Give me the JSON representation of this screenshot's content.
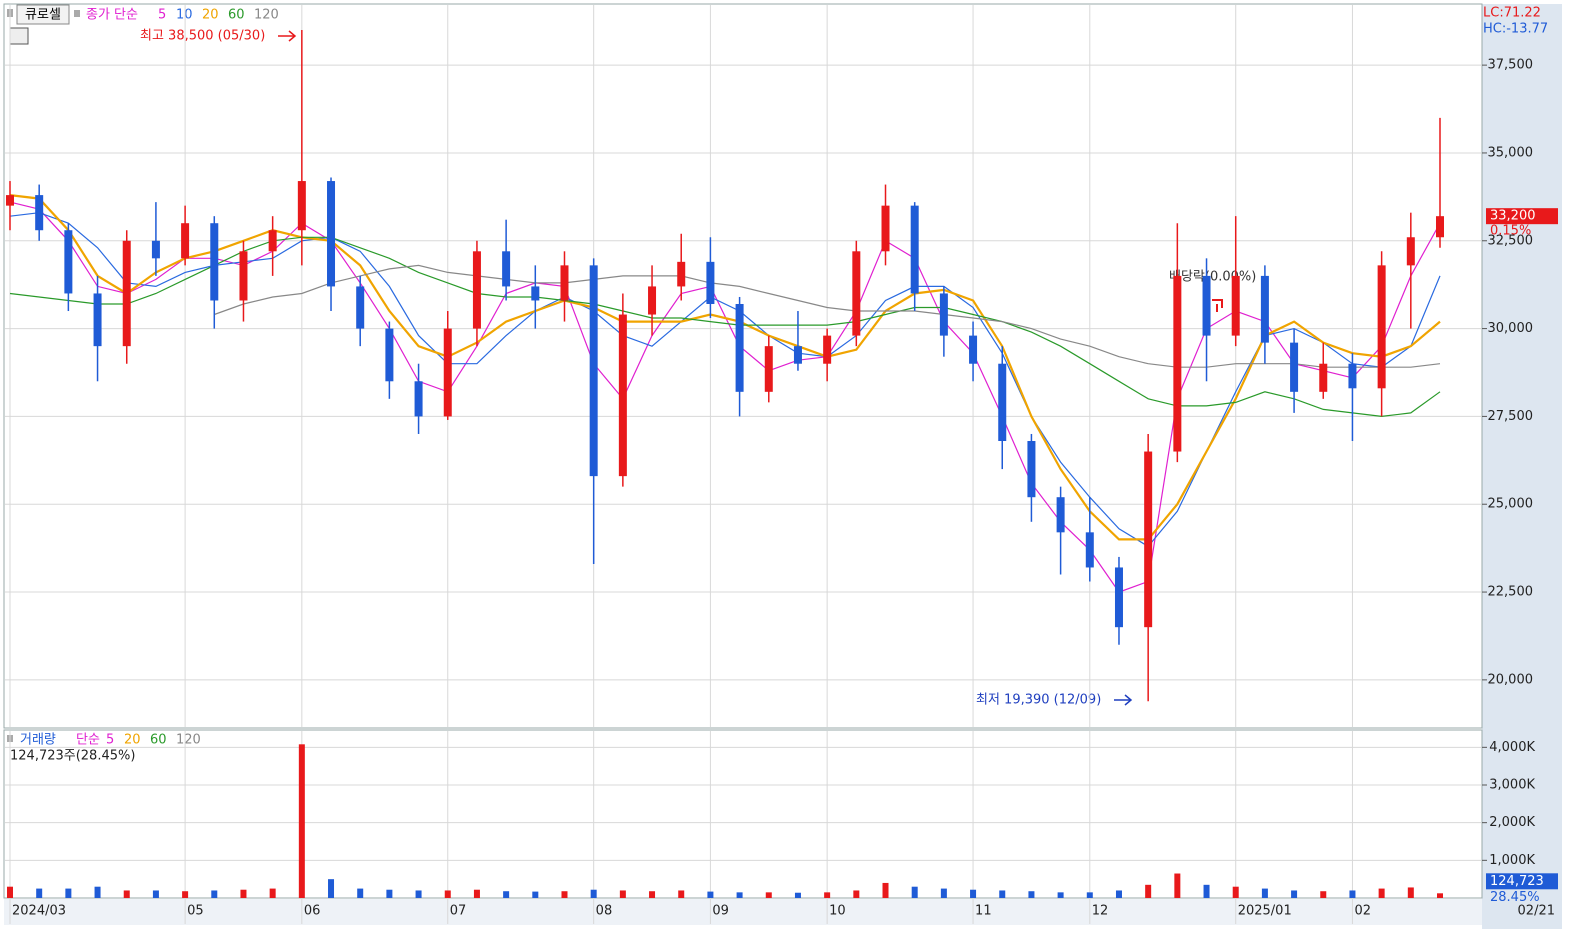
{
  "chart_data": [
    {
      "type": "candlestick",
      "title": "큐로셀",
      "legend_label": "종가 단순",
      "categories": [
        "2024/03",
        null,
        null,
        null,
        null,
        null,
        "05",
        null,
        null,
        null,
        "06",
        null,
        null,
        null,
        null,
        "07",
        null,
        null,
        null,
        null,
        "08",
        null,
        null,
        null,
        "09",
        null,
        null,
        null,
        "10",
        null,
        null,
        null,
        null,
        "11",
        null,
        null,
        null,
        "12",
        null,
        null,
        null,
        null,
        "2025/01",
        null,
        null,
        null,
        "02",
        null,
        null,
        null
      ],
      "last_date": "02/21",
      "open": [
        33500,
        33800,
        32800,
        31000,
        29500,
        32500,
        32000,
        33000,
        30800,
        32200,
        32800,
        34200,
        31200,
        30000,
        28500,
        27500,
        30000,
        32200,
        31200,
        30800,
        31800,
        25800,
        30400,
        31200,
        31900,
        30700,
        28200,
        29500,
        29000,
        29800,
        32200,
        33500,
        31000,
        29800,
        29000,
        26800,
        25200,
        24200,
        23200,
        21500,
        26500,
        31500,
        29800,
        31500,
        29600,
        28200,
        29000,
        28300,
        31800,
        32600
      ],
      "high": [
        34200,
        34100,
        33000,
        31500,
        32800,
        33600,
        33500,
        33200,
        32500,
        33200,
        38500,
        34300,
        31500,
        30200,
        29000,
        30500,
        32500,
        33100,
        31800,
        32200,
        32000,
        31000,
        31800,
        32700,
        32600,
        30900,
        29800,
        30500,
        30000,
        32500,
        34100,
        33600,
        31200,
        30200,
        29500,
        27000,
        25500,
        25200,
        23500,
        27000,
        33000,
        32000,
        33200,
        31800,
        30000,
        29600,
        29300,
        32200,
        33300,
        36000
      ],
      "low": [
        32800,
        32500,
        30500,
        28500,
        29000,
        31500,
        31800,
        30000,
        30200,
        31500,
        31800,
        30500,
        29500,
        28000,
        27000,
        27400,
        29500,
        30800,
        30000,
        30200,
        23300,
        25500,
        29800,
        30800,
        30300,
        27500,
        27900,
        28800,
        28500,
        29500,
        31800,
        30500,
        29200,
        28500,
        26000,
        24500,
        23000,
        22800,
        21000,
        19390,
        26200,
        28500,
        29500,
        29000,
        27600,
        28000,
        26800,
        27500,
        30000,
        32300
      ],
      "close": [
        33800,
        32800,
        31000,
        29500,
        32500,
        32000,
        33000,
        30800,
        32200,
        32800,
        34200,
        31200,
        30000,
        28500,
        27500,
        30000,
        32200,
        31200,
        30800,
        31800,
        25800,
        30400,
        31200,
        31900,
        30700,
        28200,
        29500,
        29000,
        29800,
        32200,
        33500,
        31000,
        29800,
        29000,
        26800,
        25200,
        24200,
        23200,
        21500,
        26500,
        31500,
        29800,
        31500,
        29600,
        28200,
        29000,
        28300,
        31800,
        32600,
        33200
      ],
      "up_color": "#e8191b",
      "down_color": "#1f5bd6",
      "series": [
        {
          "name": "5",
          "color": "#e020d0",
          "values": [
            33600,
            33400,
            32500,
            31200,
            31000,
            31400,
            32000,
            32000,
            31800,
            32200,
            33000,
            32500,
            31300,
            30000,
            28500,
            28200,
            29500,
            31000,
            31300,
            31200,
            29000,
            28000,
            29800,
            31000,
            31200,
            29500,
            28800,
            29100,
            29200,
            30500,
            32500,
            32000,
            30200,
            29300,
            27500,
            25600,
            24500,
            23700,
            22500,
            22800,
            28000,
            30000,
            30500,
            30200,
            29000,
            28800,
            28600,
            29500,
            31500,
            33000
          ]
        },
        {
          "name": "10",
          "color": "#2a6ae0",
          "values": [
            33200,
            33300,
            33000,
            32300,
            31300,
            31200,
            31600,
            31800,
            31900,
            32000,
            32500,
            32600,
            32200,
            31200,
            29800,
            29000,
            29000,
            29800,
            30500,
            30900,
            30500,
            29800,
            29500,
            30200,
            30900,
            30500,
            29800,
            29300,
            29200,
            29800,
            30800,
            31200,
            31200,
            30600,
            29300,
            27500,
            26200,
            25200,
            24300,
            23800,
            24800,
            26500,
            28200,
            29800,
            30000,
            29600,
            29000,
            28900,
            29500,
            31500
          ]
        },
        {
          "name": "20",
          "color": "#f0a400",
          "values": [
            33800,
            33700,
            32800,
            31500,
            31000,
            31600,
            32000,
            32200,
            32500,
            32800,
            32600,
            32500,
            31800,
            30500,
            29500,
            29200,
            29600,
            30200,
            30500,
            30800,
            30600,
            30200,
            30200,
            30200,
            30400,
            30200,
            29800,
            29500,
            29200,
            29400,
            30500,
            31000,
            31100,
            30800,
            29500,
            27500,
            26000,
            24800,
            24000,
            24000,
            25000,
            26500,
            28000,
            29800,
            30200,
            29600,
            29300,
            29200,
            29500,
            30200
          ]
        },
        {
          "name": "60",
          "color": "#2a9a2a",
          "values": [
            31000,
            30900,
            30800,
            30700,
            30700,
            31000,
            31400,
            31800,
            32200,
            32500,
            32600,
            32600,
            32300,
            32000,
            31600,
            31300,
            31000,
            30900,
            30900,
            30800,
            30700,
            30500,
            30300,
            30300,
            30200,
            30100,
            30100,
            30100,
            30100,
            30200,
            30400,
            30600,
            30600,
            30400,
            30200,
            29900,
            29500,
            29000,
            28500,
            28000,
            27800,
            27800,
            27900,
            28200,
            28000,
            27700,
            27600,
            27500,
            27600,
            28200
          ]
        },
        {
          "name": "120",
          "color": "#888888",
          "values": [
            null,
            null,
            null,
            null,
            null,
            null,
            null,
            30400,
            30700,
            30900,
            31000,
            31300,
            31500,
            31700,
            31800,
            31600,
            31500,
            31400,
            31300,
            31300,
            31400,
            31500,
            31500,
            31500,
            31300,
            31200,
            31000,
            30800,
            30600,
            30500,
            30500,
            30500,
            30400,
            30300,
            30200,
            30000,
            29700,
            29500,
            29200,
            29000,
            28900,
            28900,
            29000,
            29000,
            29000,
            28900,
            28900,
            28900,
            28900,
            29000
          ]
        }
      ],
      "ylim": [
        18630,
        39240
      ],
      "yticks": [
        {
          "value": 20000,
          "label": "20,000"
        },
        {
          "value": 22500,
          "label": "22,500"
        },
        {
          "value": 25000,
          "label": "25,000"
        },
        {
          "value": 27500,
          "label": "27,500"
        },
        {
          "value": 30000,
          "label": "30,000"
        },
        {
          "value": 32500,
          "label": "32,500"
        },
        {
          "value": 35000,
          "label": "35,000"
        },
        {
          "value": 37500,
          "label": "37,500"
        }
      ],
      "annotations": {
        "high": "최고 38,500 (05/30)",
        "low": "최저 19,390 (12/09)",
        "dividend": "배당락(0.00%)"
      },
      "indicators": [
        "LC:71.22",
        "HC:-13.77"
      ],
      "last_label": "33,200",
      "last_change": "0.15%"
    },
    {
      "type": "bar",
      "title": "거래량",
      "legend_label": "단순",
      "legend": [
        {
          "name": "5",
          "color": "#e020d0"
        },
        {
          "name": "20",
          "color": "#f0a400"
        },
        {
          "name": "60",
          "color": "#2a9a2a"
        },
        {
          "name": "120",
          "color": "#888888"
        }
      ],
      "subtitle": "124,723주(28.45%)",
      "values": [
        300,
        250,
        250,
        300,
        200,
        200,
        180,
        200,
        220,
        250,
        4080,
        500,
        250,
        220,
        200,
        200,
        220,
        180,
        170,
        180,
        220,
        200,
        180,
        200,
        170,
        150,
        150,
        140,
        150,
        200,
        400,
        300,
        250,
        220,
        200,
        180,
        150,
        150,
        200,
        350,
        650,
        350,
        300,
        250,
        200,
        180,
        200,
        250,
        280,
        124.723
      ],
      "ylim": [
        0,
        4460
      ],
      "yticks": [
        {
          "value": 1000,
          "label": "1,000K"
        },
        {
          "value": 2000,
          "label": "2,000K"
        },
        {
          "value": 3000,
          "label": "3,000K"
        },
        {
          "value": 4000,
          "label": "4,000K"
        }
      ],
      "last_label": "124,723",
      "last_change": "28.45%"
    }
  ]
}
